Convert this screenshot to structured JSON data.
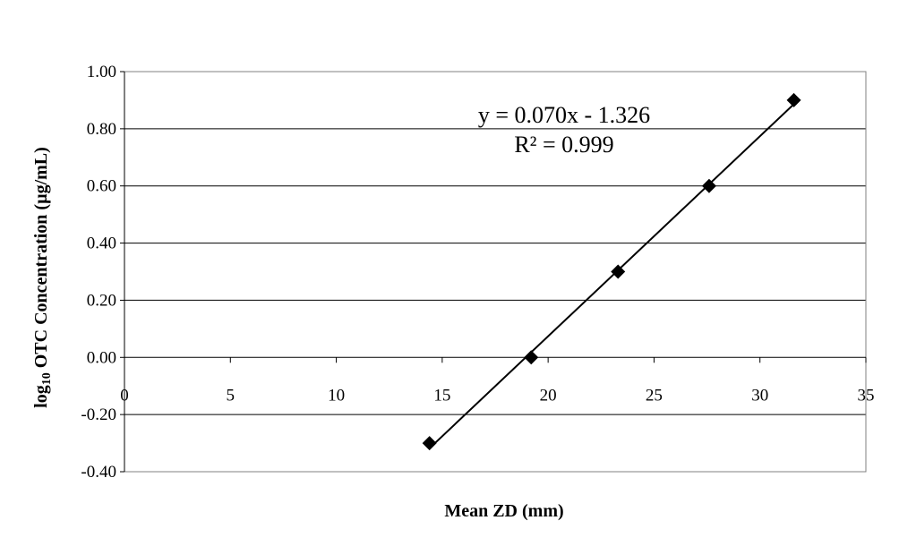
{
  "chart_data": {
    "type": "scatter",
    "xlabel": "Mean ZD (mm)",
    "ylabel_prefix": "log",
    "ylabel_subscript": "10",
    "ylabel_rest": " OTC Concentration (µg/mL)",
    "xlim": [
      0,
      35
    ],
    "ylim": [
      -0.4,
      1.0
    ],
    "x_ticks": [
      0,
      5,
      10,
      15,
      20,
      25,
      30,
      35
    ],
    "x_tick_labels": [
      "0",
      "5",
      "10",
      "15",
      "20",
      "25",
      "30",
      "35"
    ],
    "y_ticks": [
      -0.4,
      -0.2,
      0.0,
      0.2,
      0.4,
      0.6,
      0.8,
      1.0
    ],
    "y_tick_labels": [
      "-0.40",
      "-0.20",
      "0.00",
      "0.20",
      "0.40",
      "0.60",
      "0.80",
      "1.00"
    ],
    "grid": "horizontal",
    "legend": "none",
    "marker": "diamond",
    "series": [
      {
        "x": [
          14.4,
          19.2,
          23.3,
          27.6,
          31.6
        ],
        "y": [
          -0.3,
          0.0,
          0.3,
          0.6,
          0.9
        ]
      }
    ],
    "trendline": {
      "type": "linear",
      "slope": 0.07,
      "intercept": -1.326,
      "x_range": [
        14.4,
        31.6
      ],
      "equation_label": "y = 0.070x - 1.326",
      "r2_label": "R² = 0.999"
    },
    "colors": {
      "marker": "#000000",
      "line": "#000000",
      "grid": "#000000"
    }
  }
}
